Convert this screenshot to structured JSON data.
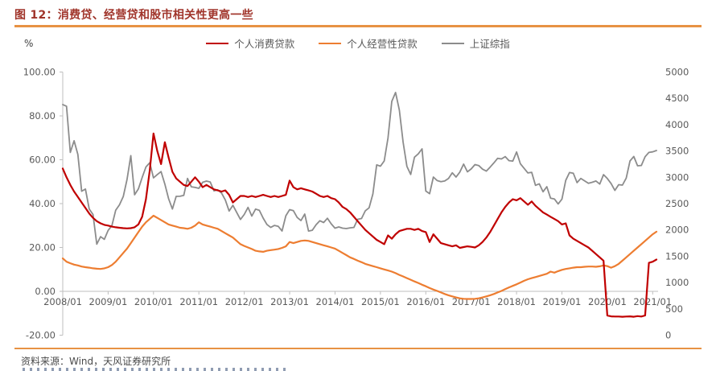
{
  "header": {
    "figure_title": "图 12：消费贷、经营贷和股市相关性更高一些"
  },
  "footer": {
    "source": "资料来源：Wind，天风证券研究所"
  },
  "chart": {
    "unit_label": "%",
    "legend": [
      {
        "label": "个人消费贷款",
        "color": "#C00000"
      },
      {
        "label": "个人经营性贷款",
        "color": "#ED7D31"
      },
      {
        "label": "上证综指",
        "color": "#8C8C8C"
      }
    ]
  },
  "chart_data": {
    "type": "line",
    "title": "图 12：消费贷、经营贷和股市相关性更高一些",
    "frequency": "monthly",
    "x_start": "2008/01",
    "x_end": "2021/02",
    "grid": false,
    "legend_position": "top-center",
    "x_tick_labels": [
      "2008/01",
      "2009/01",
      "2010/01",
      "2011/01",
      "2012/01",
      "2013/01",
      "2014/01",
      "2015/01",
      "2016/01",
      "2017/01",
      "2018/01",
      "2019/01",
      "2020/01",
      "2021/01"
    ],
    "left_axis": {
      "unit": "%",
      "min": -20,
      "max": 100,
      "ticks": [
        {
          "value": 100,
          "label": "100.00"
        },
        {
          "value": 80,
          "label": "80.00"
        },
        {
          "value": 60,
          "label": "60.00"
        },
        {
          "value": 40,
          "label": "40.00"
        },
        {
          "value": 20,
          "label": "20.00"
        },
        {
          "value": 0,
          "label": "0.00"
        },
        {
          "value": -20,
          "label": "-20.00"
        }
      ]
    },
    "right_axis": {
      "min": 0,
      "max": 5000,
      "ticks": [
        {
          "value": 5000,
          "label": "5000"
        },
        {
          "value": 4500,
          "label": "4500"
        },
        {
          "value": 4000,
          "label": "4000"
        },
        {
          "value": 3500,
          "label": "3500"
        },
        {
          "value": 3000,
          "label": "3000"
        },
        {
          "value": 2500,
          "label": "2500"
        },
        {
          "value": 2000,
          "label": "2000"
        },
        {
          "value": 1500,
          "label": "1500"
        },
        {
          "value": 1000,
          "label": "1000"
        },
        {
          "value": 500,
          "label": "500"
        },
        {
          "value": 0,
          "label": "0"
        }
      ]
    },
    "series": [
      {
        "name": "上证综指",
        "slug": "sse-composite-index",
        "axis": "right",
        "color": "#8C8C8C",
        "width": 1.8,
        "values": [
          4383,
          4349,
          3473,
          3694,
          3433,
          2736,
          2776,
          2397,
          2294,
          1729,
          1871,
          1821,
          1991,
          2083,
          2373,
          2477,
          2633,
          2959,
          3412,
          2668,
          2779,
          2995,
          3195,
          3277,
          2989,
          3052,
          3109,
          2871,
          2592,
          2398,
          2638,
          2639,
          2656,
          2979,
          2820,
          2808,
          2790,
          2905,
          2928,
          2911,
          2743,
          2762,
          2701,
          2567,
          2359,
          2468,
          2333,
          2199,
          2293,
          2428,
          2263,
          2396,
          2372,
          2225,
          2104,
          2048,
          2086,
          2068,
          1980,
          2269,
          2385,
          2365,
          2237,
          2177,
          2301,
          1979,
          1994,
          2098,
          2175,
          2141,
          2221,
          2116,
          2033,
          2056,
          2033,
          2026,
          2039,
          2048,
          2202,
          2217,
          2364,
          2421,
          2683,
          3235,
          3211,
          3310,
          3748,
          4442,
          4612,
          4277,
          3664,
          3206,
          3053,
          3383,
          3445,
          3539,
          2738,
          2688,
          3004,
          2938,
          2917,
          2930,
          2979,
          3085,
          3005,
          3100,
          3250,
          3104,
          3159,
          3242,
          3223,
          3155,
          3117,
          3192,
          3273,
          3361,
          3349,
          3393,
          3317,
          3307,
          3481,
          3259,
          3169,
          3082,
          3095,
          2847,
          2876,
          2725,
          2821,
          2603,
          2588,
          2494,
          2585,
          2941,
          3090,
          3078,
          2899,
          2979,
          2933,
          2886,
          2905,
          2929,
          2872,
          3050,
          2977,
          2880,
          2750,
          2860,
          2852,
          2985,
          3310,
          3396,
          3218,
          3225,
          3392,
          3473,
          3483,
          3509
        ]
      },
      {
        "name": "个人经营性贷款",
        "slug": "personal-business-loans",
        "axis": "left",
        "color": "#ED7D31",
        "width": 2.2,
        "values": [
          15,
          13.5,
          12.8,
          12.2,
          11.8,
          11.3,
          11,
          10.8,
          10.5,
          10.3,
          10.2,
          10.5,
          11,
          12,
          13.5,
          15.5,
          17.5,
          19.5,
          22,
          24.5,
          27,
          29.5,
          31.5,
          33,
          34.5,
          33.5,
          32.5,
          31.5,
          30.5,
          30,
          29.5,
          29,
          28.8,
          28.5,
          29,
          30,
          31.5,
          30.5,
          30,
          29.5,
          29,
          28.5,
          27.5,
          26.5,
          25.5,
          24.5,
          23,
          21.5,
          20.7,
          20,
          19.3,
          18.5,
          18.2,
          18,
          18.5,
          18.8,
          19,
          19.3,
          19.8,
          20.5,
          22.5,
          22,
          22.5,
          23,
          23.2,
          23,
          22.5,
          22,
          21.5,
          21,
          20.5,
          20,
          19.5,
          18.5,
          17.5,
          16.5,
          15.5,
          14.8,
          14,
          13.3,
          12.5,
          12,
          11.5,
          11,
          10.5,
          10,
          9.5,
          9,
          8.3,
          7.5,
          6.8,
          6,
          5.3,
          4.5,
          3.8,
          3,
          2.3,
          1.5,
          0.8,
          0.2,
          -0.5,
          -1.2,
          -1.8,
          -2.3,
          -2.8,
          -3.2,
          -3.4,
          -3.5,
          -3.5,
          -3.4,
          -3.2,
          -2.8,
          -2.3,
          -1.8,
          -1.2,
          -0.5,
          0.2,
          1,
          1.8,
          2.5,
          3.2,
          4,
          4.8,
          5.5,
          6,
          6.5,
          7,
          7.5,
          8,
          9,
          8.5,
          9.2,
          9.8,
          10.2,
          10.5,
          10.8,
          11,
          11,
          11.2,
          11.3,
          11.3,
          11.2,
          11.4,
          11.8,
          11.5,
          10.8,
          11.5,
          12.5,
          14,
          15.5,
          17,
          18.5,
          20,
          21.5,
          23,
          24.5,
          26,
          27.2
        ]
      },
      {
        "name": "个人消费贷款",
        "slug": "personal-consumer-loans",
        "axis": "left",
        "color": "#C00000",
        "width": 2.2,
        "values": [
          56,
          52,
          48.5,
          45.5,
          43,
          40.5,
          38,
          35.5,
          33.5,
          32,
          31,
          30.3,
          30,
          29.5,
          29.2,
          29,
          28.8,
          28.7,
          28.8,
          29.2,
          30.5,
          34,
          42,
          55,
          72,
          64,
          58,
          68,
          61,
          54.5,
          51.5,
          50,
          48.5,
          48,
          50,
          52,
          50,
          47.5,
          48.5,
          47.5,
          46.5,
          46,
          45.5,
          46,
          44,
          40.5,
          42,
          43.5,
          43.5,
          43,
          43.5,
          43,
          43.5,
          44,
          43.5,
          43,
          43.5,
          43,
          43.5,
          44,
          50.5,
          47.5,
          46.5,
          47,
          46.5,
          46,
          45.5,
          44.5,
          43.5,
          43,
          43.5,
          42.5,
          42,
          40.5,
          38.5,
          37.5,
          36,
          34,
          32,
          30,
          28,
          26.5,
          25,
          23.5,
          22.5,
          21.5,
          25.5,
          24,
          26,
          27.5,
          28,
          28.5,
          28.5,
          28,
          28.5,
          27.5,
          27,
          22.5,
          26,
          24,
          22,
          21.5,
          21,
          20.5,
          21,
          19.8,
          20.2,
          20.5,
          20.3,
          20,
          21,
          22.5,
          24.5,
          27,
          30,
          33,
          36,
          38.5,
          40.5,
          42,
          41.5,
          42.5,
          41,
          39.5,
          41,
          39,
          37.5,
          36,
          35,
          34,
          33,
          32,
          30.5,
          31,
          25.5,
          24,
          23,
          22,
          21,
          20,
          18.5,
          17,
          15.5,
          14,
          -11,
          -11.4,
          -11.5,
          -11.5,
          -11.6,
          -11.5,
          -11.4,
          -11.6,
          -11.3,
          -11.5,
          -11,
          13,
          13.5,
          14.5
        ]
      }
    ]
  }
}
